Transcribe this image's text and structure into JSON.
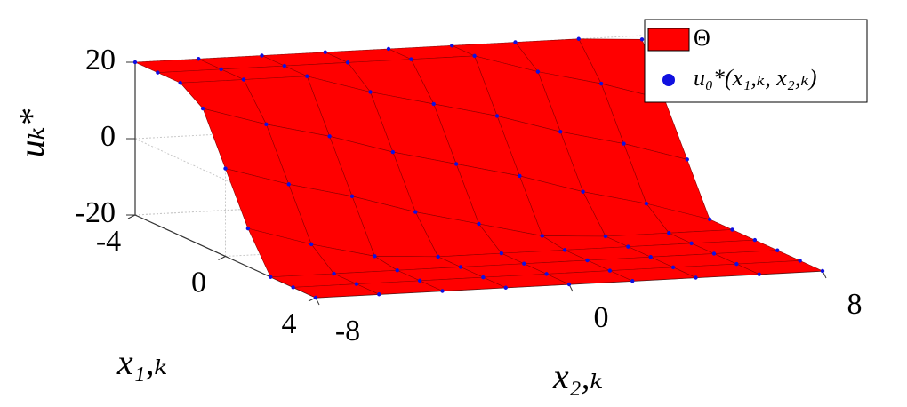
{
  "chart_data": {
    "type": "surface3d",
    "zlabel": "uₖ*",
    "ylabel": "x₁,ₖ",
    "xlabel": "x₂,ₖ",
    "x": [
      -8,
      -6,
      -4,
      -2,
      0,
      2,
      4,
      6,
      8
    ],
    "y": [
      -4,
      -3,
      -2,
      -1,
      0,
      1,
      2,
      3,
      4
    ],
    "z": [
      [
        20,
        20,
        20,
        20,
        20,
        20,
        20,
        20,
        19
      ],
      [
        20,
        20,
        20,
        20,
        20,
        20,
        15,
        11,
        6
      ],
      [
        20,
        20,
        20,
        15,
        11,
        7,
        2,
        -2,
        -7
      ],
      [
        16,
        11,
        7,
        2,
        -2,
        -6,
        -11,
        -15,
        -20
      ],
      [
        3,
        -2,
        -6,
        -11,
        -15,
        -19,
        -20,
        -20,
        -20
      ],
      [
        -10,
        -15,
        -19,
        -20,
        -20,
        -20,
        -20,
        -20,
        -20
      ],
      [
        -20,
        -20,
        -20,
        -20,
        -20,
        -20,
        -20,
        -20,
        -20
      ],
      [
        -20,
        -20,
        -20,
        -20,
        -20,
        -20,
        -20,
        -20,
        -20
      ],
      [
        -20,
        -20,
        -20,
        -20,
        -20,
        -20,
        -20,
        -20,
        -20
      ]
    ],
    "series": [
      {
        "name": "Θ",
        "color": "#ff0000"
      },
      {
        "name": "u₀*(x₁,ₖ, x₂,ₖ)",
        "color": "#1010e0"
      }
    ],
    "xlim": [
      -8,
      8
    ],
    "ylim": [
      -4,
      4
    ],
    "zlim": [
      -20,
      20
    ],
    "xticks": [
      -8,
      0,
      8
    ],
    "yticks": [
      -4,
      0,
      4
    ],
    "zticks": [
      -20,
      0,
      20
    ],
    "grid": true,
    "legend": "upper right"
  }
}
